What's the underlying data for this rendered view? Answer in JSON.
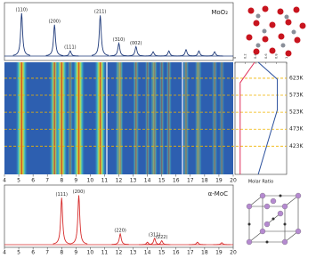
{
  "chart_data": [
    {
      "type": "peaks",
      "label": "MoO₂",
      "color": "#1f3a7a",
      "xlim": [
        4,
        20
      ],
      "ylim": [
        0,
        1.1
      ],
      "peaks": {
        "labels": [
          "(110)",
          "(200)",
          "(111)",
          "(211)",
          "(310)",
          "(002)",
          null,
          null,
          null,
          null,
          null
        ],
        "x": [
          5.2,
          7.5,
          8.6,
          10.7,
          12.0,
          13.2,
          14.4,
          15.5,
          16.7,
          17.6,
          18.7
        ],
        "values": [
          1.0,
          0.73,
          0.12,
          0.95,
          0.3,
          0.22,
          0.1,
          0.12,
          0.15,
          0.12,
          0.1
        ]
      }
    },
    {
      "type": "heatmap",
      "xlim": [
        4,
        20
      ],
      "xticks": [
        4,
        5,
        6,
        7,
        8,
        9,
        10,
        11,
        12,
        13,
        14,
        15,
        16,
        17,
        18,
        19,
        20
      ],
      "ylim": [
        340,
        670
      ],
      "yticks": [
        {
          "value": 623,
          "label": "623K"
        },
        {
          "value": 573,
          "label": "573K"
        },
        {
          "value": 523,
          "label": "523K"
        },
        {
          "value": 473,
          "label": "473K"
        },
        {
          "value": 423,
          "label": "423K"
        }
      ]
    },
    {
      "type": "ratio",
      "xlabel": "Molar Ratio",
      "xlim": [
        0,
        1
      ],
      "xticks": [
        0,
        0.2,
        0.4,
        0.6,
        0.8,
        1
      ],
      "ylim": [
        340,
        670
      ],
      "series": [
        {
          "color": "#2a4f9c",
          "temperature": [
            670,
            620,
            530,
            340
          ],
          "values": [
            0.45,
            0.82,
            0.82,
            0.45
          ]
        },
        {
          "color": "#e0305a",
          "temperature": [
            670,
            610,
            340
          ],
          "values": [
            0.38,
            0.1,
            0.1
          ]
        }
      ]
    },
    {
      "type": "peaks",
      "label": "α-MoC",
      "color": "#d62b2b",
      "xlim": [
        4,
        20
      ],
      "xticks": [
        4,
        5,
        6,
        7,
        8,
        9,
        10,
        11,
        12,
        13,
        14,
        15,
        16,
        17,
        18,
        19,
        20
      ],
      "ylim": [
        0,
        1.1
      ],
      "peaks": {
        "labels": [
          "(111)",
          "(200)",
          "(220)",
          null,
          "(311)",
          "(222)",
          null,
          null
        ],
        "x": [
          8.0,
          9.2,
          12.1,
          14.0,
          14.5,
          15.0,
          17.5,
          19.2
        ],
        "values": [
          0.95,
          1.0,
          0.22,
          0.05,
          0.13,
          0.08,
          0.05,
          0.04
        ]
      }
    }
  ]
}
